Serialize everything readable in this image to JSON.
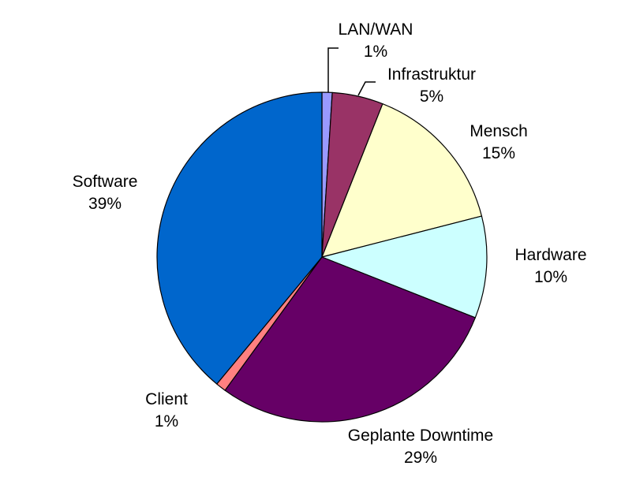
{
  "chart_data": {
    "type": "pie",
    "title": "",
    "unit": "%",
    "direction": "clockwise",
    "start_angle_deg": 0,
    "legend": "none",
    "background_color": "#FFFFFF",
    "outline_color": "#000000",
    "label_color": "#000000",
    "slices": [
      {
        "label": "LAN/WAN",
        "value": 1,
        "value_label": "1%",
        "color": "#9999FF"
      },
      {
        "label": "Infrastruktur",
        "value": 5,
        "value_label": "5%",
        "color": "#993366"
      },
      {
        "label": "Mensch",
        "value": 15,
        "value_label": "15%",
        "color": "#FFFFCC"
      },
      {
        "label": "Hardware",
        "value": 10,
        "value_label": "10%",
        "color": "#CCFFFF"
      },
      {
        "label": "Geplante Downtime",
        "value": 29,
        "value_label": "29%",
        "color": "#660066"
      },
      {
        "label": "Client",
        "value": 1,
        "value_label": "1%",
        "color": "#FF8080"
      },
      {
        "label": "Software",
        "value": 39,
        "value_label": "39%",
        "color": "#0066CC"
      }
    ]
  }
}
